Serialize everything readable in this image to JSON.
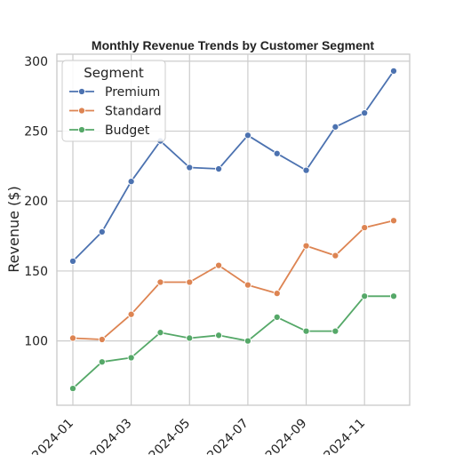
{
  "chart_data": {
    "type": "line",
    "title": "Monthly Revenue Trends by Customer Segment",
    "xlabel": "",
    "ylabel": "Revenue ($)",
    "x": [
      "2024-01",
      "2024-02",
      "2024-03",
      "2024-04",
      "2024-05",
      "2024-06",
      "2024-07",
      "2024-08",
      "2024-09",
      "2024-10",
      "2024-11",
      "2024-12"
    ],
    "x_ticks": [
      "2024-01",
      "2024-03",
      "2024-05",
      "2024-07",
      "2024-09",
      "2024-11"
    ],
    "y_ticks": [
      100,
      150,
      200,
      250,
      300
    ],
    "ylim": [
      54,
      305
    ],
    "grid": true,
    "legend": {
      "title": "Segment",
      "position": "top-left"
    },
    "series": [
      {
        "name": "Premium",
        "color": "#4c72b0",
        "values": [
          157,
          178,
          214,
          243,
          224,
          223,
          247,
          234,
          222,
          253,
          263,
          293
        ]
      },
      {
        "name": "Standard",
        "color": "#dd8452",
        "values": [
          102,
          101,
          119,
          142,
          142,
          154,
          140,
          134,
          168,
          161,
          181,
          186
        ]
      },
      {
        "name": "Budget",
        "color": "#55a868",
        "values": [
          66,
          85,
          88,
          106,
          102,
          104,
          100,
          117,
          107,
          107,
          132,
          132
        ]
      }
    ]
  }
}
